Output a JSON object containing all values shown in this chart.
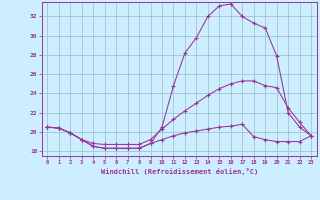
{
  "xlabel": "Windchill (Refroidissement éolien,°C)",
  "background_color": "#cceeff",
  "line_color": "#993399",
  "grid_color": "#99bbcc",
  "xlim": [
    -0.5,
    23.5
  ],
  "ylim": [
    17.5,
    33.5
  ],
  "xticks": [
    0,
    1,
    2,
    3,
    4,
    5,
    6,
    7,
    8,
    9,
    10,
    11,
    12,
    13,
    14,
    15,
    16,
    17,
    18,
    19,
    20,
    21,
    22,
    23
  ],
  "yticks": [
    18,
    20,
    22,
    24,
    26,
    28,
    30,
    32
  ],
  "line1_x": [
    0,
    1,
    2,
    3,
    4,
    5,
    6,
    7,
    8,
    9,
    10,
    11,
    12,
    13,
    14,
    15,
    16,
    17,
    18,
    19,
    20,
    21,
    22,
    23
  ],
  "line1_y": [
    20.5,
    20.4,
    19.9,
    19.2,
    18.5,
    18.3,
    18.3,
    18.3,
    18.3,
    18.8,
    20.5,
    24.8,
    28.2,
    29.8,
    32.0,
    33.1,
    33.3,
    32.0,
    31.3,
    30.8,
    27.9,
    22.0,
    20.5,
    19.6
  ],
  "line2_x": [
    0,
    1,
    2,
    3,
    4,
    5,
    6,
    7,
    8,
    9,
    10,
    11,
    12,
    13,
    14,
    15,
    16,
    17,
    18,
    19,
    20,
    21,
    22,
    23
  ],
  "line2_y": [
    20.5,
    20.4,
    19.9,
    19.2,
    18.8,
    18.7,
    18.7,
    18.7,
    18.7,
    19.2,
    20.3,
    21.3,
    22.2,
    23.0,
    23.8,
    24.5,
    25.0,
    25.3,
    25.3,
    24.8,
    24.6,
    22.5,
    21.0,
    19.6
  ],
  "line3_x": [
    0,
    1,
    2,
    3,
    4,
    5,
    6,
    7,
    8,
    9,
    10,
    11,
    12,
    13,
    14,
    15,
    16,
    17,
    18,
    19,
    20,
    21,
    22,
    23
  ],
  "line3_y": [
    20.5,
    20.4,
    19.9,
    19.2,
    18.5,
    18.3,
    18.3,
    18.3,
    18.3,
    18.8,
    19.2,
    19.6,
    19.9,
    20.1,
    20.3,
    20.5,
    20.6,
    20.8,
    19.5,
    19.2,
    19.0,
    19.0,
    19.0,
    19.6
  ]
}
